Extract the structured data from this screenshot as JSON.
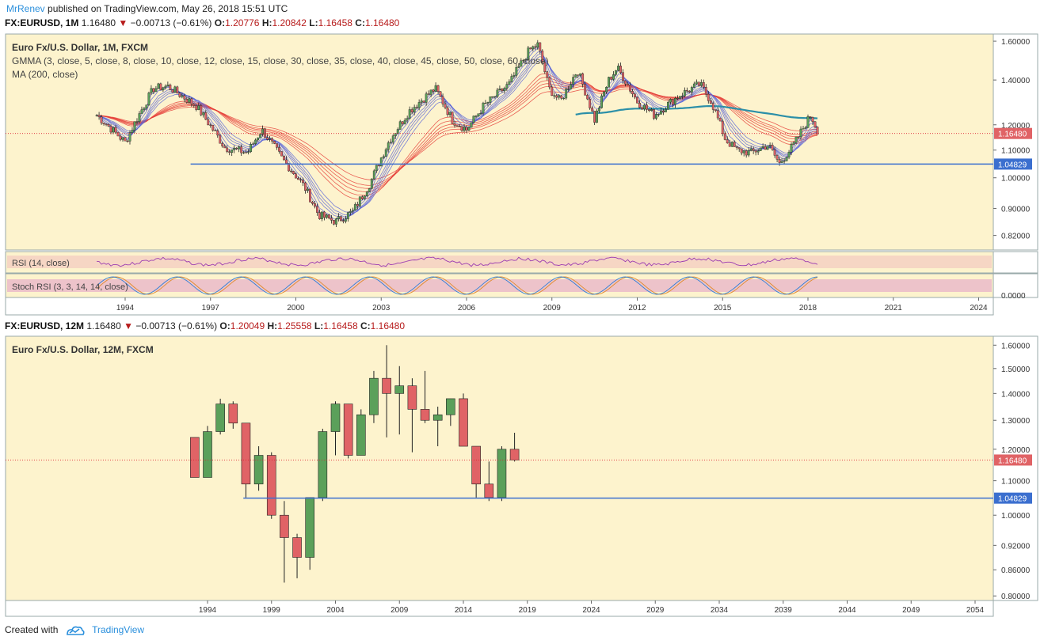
{
  "header": {
    "author": "MrRenev",
    "published": "published on TradingView.com, May 26, 2018 15:51 UTC"
  },
  "top_symbol": {
    "sym": "FX:EURUSD, 1M",
    "last": "1.16480",
    "change": "−0.00713 (−0.61%)",
    "o_label": "O:",
    "o": "1.20776",
    "h_label": "H:",
    "h": "1.20842",
    "l_label": "L:",
    "l": "1.16458",
    "c_label": "C:",
    "c": "1.16480"
  },
  "bottom_symbol": {
    "sym": "FX:EURUSD, 12M",
    "last": "1.16480",
    "change": "−0.00713 (−0.61%)",
    "o_label": "O:",
    "o": "1.20049",
    "h_label": "H:",
    "h": "1.25558",
    "l_label": "L:",
    "l": "1.16458",
    "c_label": "C:",
    "c": "1.16480"
  },
  "colors": {
    "bg": "#fdf3cd",
    "up": "#5ba05a",
    "down": "#e06366",
    "hline": "#3b6fcf",
    "rsi": "#9b3bb1",
    "gmma_fast": "#5560d8",
    "gmma_slow": "#e53935",
    "ma": "#2b8fa8"
  },
  "chart_data": [
    {
      "type": "line",
      "title": "Euro Fx/U.S. Dollar, 1M, FXCM",
      "indicators": [
        "GMMA (3, close, 5, close, 8, close, 10, close, 12, close, 15, close, 30, close, 35, close, 40, close, 45, close, 50, close, 60, close)",
        "MA (200, close)"
      ],
      "x_ticks": [
        "1994",
        "1997",
        "2000",
        "2003",
        "2006",
        "2009",
        "2012",
        "2015",
        "2018",
        "2021",
        "2024"
      ],
      "y_ticks": [
        "1.60000",
        "1.40000",
        "1.20000",
        "1.10000",
        "1.00000",
        "0.90000",
        "0.82000"
      ],
      "ylim": [
        0.78,
        1.64
      ],
      "x": [
        1993.0,
        1994.0,
        1995.0,
        1995.5,
        1996.5,
        1997.5,
        1998.3,
        1998.8,
        1999.5,
        2000.3,
        2000.8,
        2001.4,
        2002.0,
        2002.6,
        2003.3,
        2004.0,
        2004.9,
        2005.5,
        2006.0,
        2006.6,
        2007.5,
        2008.2,
        2008.5,
        2008.9,
        2009.3,
        2009.9,
        2010.5,
        2011.0,
        2011.3,
        2012.0,
        2012.6,
        2013.5,
        2014.2,
        2014.6,
        2015.1,
        2015.5,
        2016.0,
        2016.6,
        2017.0,
        2017.5,
        2018.1,
        2018.4
      ],
      "close": [
        1.24,
        1.13,
        1.36,
        1.37,
        1.28,
        1.11,
        1.09,
        1.18,
        1.07,
        0.97,
        0.88,
        0.86,
        0.89,
        0.98,
        1.14,
        1.26,
        1.36,
        1.22,
        1.18,
        1.28,
        1.38,
        1.55,
        1.58,
        1.36,
        1.3,
        1.45,
        1.22,
        1.4,
        1.46,
        1.3,
        1.24,
        1.33,
        1.38,
        1.3,
        1.14,
        1.1,
        1.09,
        1.12,
        1.05,
        1.12,
        1.24,
        1.16
      ],
      "hline": 1.04829,
      "last_value": 1.1648,
      "value_labels": [
        "1.16480",
        "1.04829"
      ],
      "rsi": {
        "label": "RSI (14, close)"
      },
      "stoch_rsi": {
        "label": "Stoch RSI (3, 3, 14, 14, close)",
        "tick": "0.0000"
      }
    },
    {
      "type": "candlestick",
      "title": "Euro Fx/U.S. Dollar, 12M, FXCM",
      "x_ticks": [
        "1994",
        "1999",
        "2004",
        "2009",
        "2014",
        "2019",
        "2024",
        "2029",
        "2034",
        "2039",
        "2044",
        "2049",
        "2054"
      ],
      "y_ticks": [
        "1.60000",
        "1.50000",
        "1.40000",
        "1.30000",
        "1.20000",
        "1.10000",
        "1.00000",
        "0.92000",
        "0.86000",
        "0.80000"
      ],
      "ylim": [
        0.79,
        1.64
      ],
      "value_labels": [
        "1.16480",
        "1.04829"
      ],
      "candles": [
        {
          "year": 1993,
          "o": 1.24,
          "h": 1.24,
          "l": 1.11,
          "c": 1.11
        },
        {
          "year": 1994,
          "o": 1.11,
          "h": 1.28,
          "l": 1.11,
          "c": 1.26
        },
        {
          "year": 1995,
          "o": 1.26,
          "h": 1.38,
          "l": 1.25,
          "c": 1.36
        },
        {
          "year": 1996,
          "o": 1.36,
          "h": 1.37,
          "l": 1.27,
          "c": 1.29
        },
        {
          "year": 1997,
          "o": 1.29,
          "h": 1.29,
          "l": 1.05,
          "c": 1.09
        },
        {
          "year": 1998,
          "o": 1.09,
          "h": 1.21,
          "l": 1.07,
          "c": 1.18
        },
        {
          "year": 1999,
          "o": 1.18,
          "h": 1.19,
          "l": 0.99,
          "c": 1.0
        },
        {
          "year": 2000,
          "o": 1.0,
          "h": 1.04,
          "l": 0.83,
          "c": 0.94
        },
        {
          "year": 2001,
          "o": 0.94,
          "h": 0.95,
          "l": 0.84,
          "c": 0.89
        },
        {
          "year": 2002,
          "o": 0.89,
          "h": 1.05,
          "l": 0.86,
          "c": 1.05
        },
        {
          "year": 2003,
          "o": 1.05,
          "h": 1.27,
          "l": 1.04,
          "c": 1.26
        },
        {
          "year": 2004,
          "o": 1.26,
          "h": 1.37,
          "l": 1.18,
          "c": 1.36
        },
        {
          "year": 2005,
          "o": 1.36,
          "h": 1.36,
          "l": 1.17,
          "c": 1.18
        },
        {
          "year": 2006,
          "o": 1.18,
          "h": 1.34,
          "l": 1.18,
          "c": 1.32
        },
        {
          "year": 2007,
          "o": 1.32,
          "h": 1.49,
          "l": 1.29,
          "c": 1.46
        },
        {
          "year": 2008,
          "o": 1.46,
          "h": 1.6,
          "l": 1.24,
          "c": 1.4
        },
        {
          "year": 2009,
          "o": 1.4,
          "h": 1.51,
          "l": 1.25,
          "c": 1.43
        },
        {
          "year": 2010,
          "o": 1.43,
          "h": 1.46,
          "l": 1.19,
          "c": 1.34
        },
        {
          "year": 2011,
          "o": 1.34,
          "h": 1.49,
          "l": 1.29,
          "c": 1.3
        },
        {
          "year": 2012,
          "o": 1.3,
          "h": 1.35,
          "l": 1.21,
          "c": 1.32
        },
        {
          "year": 2013,
          "o": 1.32,
          "h": 1.38,
          "l": 1.28,
          "c": 1.38
        },
        {
          "year": 2014,
          "o": 1.38,
          "h": 1.4,
          "l": 1.21,
          "c": 1.21
        },
        {
          "year": 2015,
          "o": 1.21,
          "h": 1.21,
          "l": 1.05,
          "c": 1.09
        },
        {
          "year": 2016,
          "o": 1.09,
          "h": 1.16,
          "l": 1.04,
          "c": 1.05
        },
        {
          "year": 2017,
          "o": 1.05,
          "h": 1.21,
          "l": 1.04,
          "c": 1.2
        },
        {
          "year": 2018,
          "o": 1.2,
          "h": 1.256,
          "l": 1.16,
          "c": 1.165
        }
      ],
      "hline": 1.04829,
      "last_value": 1.1648
    }
  ],
  "footer": {
    "created": "Created with",
    "brand": "TradingView"
  }
}
